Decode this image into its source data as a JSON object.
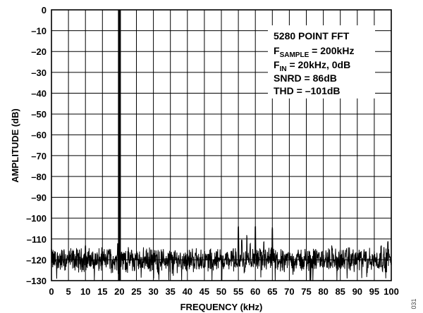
{
  "chart_data": {
    "type": "line",
    "xlabel": "FREQUENCY (kHz)",
    "ylabel": "AMPLITUDE (dB)",
    "xlim": [
      0,
      100
    ],
    "ylim": [
      -130,
      0
    ],
    "x_ticks": [
      0,
      5,
      10,
      15,
      20,
      25,
      30,
      35,
      40,
      45,
      50,
      55,
      60,
      65,
      70,
      75,
      80,
      85,
      90,
      95,
      100
    ],
    "y_ticks": [
      0,
      -10,
      -20,
      -30,
      -40,
      -50,
      -60,
      -70,
      -80,
      -90,
      -100,
      -110,
      -120,
      -130
    ],
    "x_tick_labels": [
      "0",
      "5",
      "10",
      "15",
      "20",
      "25",
      "30",
      "35",
      "40",
      "45",
      "50",
      "55",
      "60",
      "65",
      "70",
      "75",
      "80",
      "85",
      "90",
      "95",
      "100"
    ],
    "y_tick_labels": [
      "0",
      "–10",
      "–20",
      "–30",
      "–40",
      "–50",
      "–60",
      "–70",
      "–80",
      "–90",
      "–100",
      "–110",
      "–120",
      "–130"
    ],
    "grid": true,
    "series": [
      {
        "noise_floor_db": -120,
        "fundamental": {
          "x": 20,
          "y": 0
        },
        "spurs": [
          {
            "x": 10,
            "y": -113
          },
          {
            "x": 17,
            "y": -114
          },
          {
            "x": 19.5,
            "y": -112
          },
          {
            "x": 55,
            "y": -103
          },
          {
            "x": 56,
            "y": -110
          },
          {
            "x": 57.5,
            "y": -108
          },
          {
            "x": 58.5,
            "y": -112
          },
          {
            "x": 60,
            "y": -104
          },
          {
            "x": 62.5,
            "y": -111
          },
          {
            "x": 65,
            "y": -104
          },
          {
            "x": 82.5,
            "y": -113
          },
          {
            "x": 97,
            "y": -113
          },
          {
            "x": 99,
            "y": -111
          }
        ]
      }
    ],
    "annotation": {
      "line1": "5280 POINT FFT",
      "line2_main": "F",
      "line2_sub": "SAMPLE",
      "line2_rest": " = 200kHz",
      "line3_main": "F",
      "line3_sub": "IN",
      "line3_rest": " = 20kHz, 0dB",
      "line4": "SNRD = 86dB",
      "line5": "THD = –101dB"
    },
    "colors": {
      "trace": "#000000",
      "grid": "#000000",
      "background": "#ffffff"
    }
  },
  "figure_id": "031"
}
